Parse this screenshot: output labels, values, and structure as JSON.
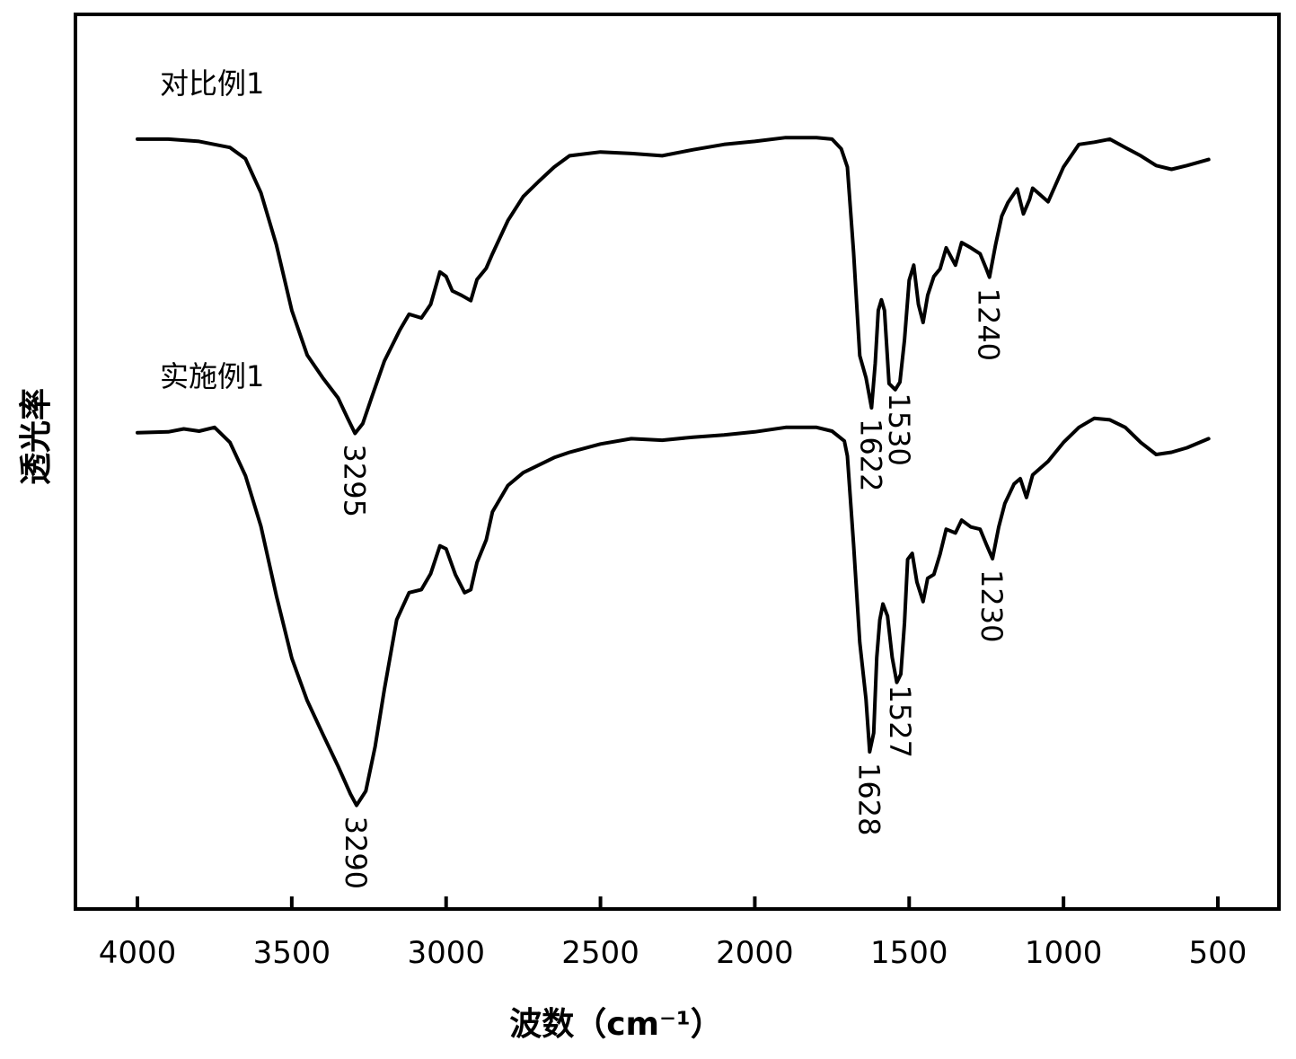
{
  "chart_data": {
    "type": "line",
    "xlabel": "波数（cm⁻¹）",
    "ylabel": "透光率",
    "xlim": [
      4200,
      300
    ],
    "x_ticks": [
      4000,
      3500,
      3000,
      2500,
      2000,
      1500,
      1000,
      500
    ],
    "x_tick_labels": [
      "4000",
      "3500",
      "3000",
      "2500",
      "2000",
      "1500",
      "1000",
      "500"
    ],
    "ylim": [
      0,
      100
    ],
    "grid": false,
    "series": [
      {
        "name": "对比例1",
        "points": [
          [
            4000,
            88.7
          ],
          [
            3900,
            88.7
          ],
          [
            3800,
            88.4
          ],
          [
            3700,
            87.6
          ],
          [
            3650,
            86.1
          ],
          [
            3600,
            81.6
          ],
          [
            3550,
            74.7
          ],
          [
            3500,
            66.0
          ],
          [
            3450,
            60.1
          ],
          [
            3400,
            57.1
          ],
          [
            3350,
            54.4
          ],
          [
            3320,
            51.8
          ],
          [
            3295,
            49.7
          ],
          [
            3270,
            51.0
          ],
          [
            3240,
            54.6
          ],
          [
            3200,
            59.3
          ],
          [
            3150,
            63.4
          ],
          [
            3120,
            65.5
          ],
          [
            3080,
            65.0
          ],
          [
            3050,
            66.8
          ],
          [
            3020,
            71.1
          ],
          [
            3000,
            70.5
          ],
          [
            2980,
            68.6
          ],
          [
            2950,
            68.0
          ],
          [
            2920,
            67.3
          ],
          [
            2900,
            70.1
          ],
          [
            2870,
            71.6
          ],
          [
            2850,
            73.5
          ],
          [
            2800,
            77.9
          ],
          [
            2750,
            81.1
          ],
          [
            2700,
            83.1
          ],
          [
            2650,
            85.0
          ],
          [
            2600,
            86.5
          ],
          [
            2500,
            87.0
          ],
          [
            2400,
            86.8
          ],
          [
            2300,
            86.5
          ],
          [
            2200,
            87.3
          ],
          [
            2100,
            88.0
          ],
          [
            2000,
            88.4
          ],
          [
            1900,
            88.9
          ],
          [
            1800,
            88.9
          ],
          [
            1750,
            88.7
          ],
          [
            1720,
            87.4
          ],
          [
            1700,
            85.0
          ],
          [
            1680,
            73.7
          ],
          [
            1660,
            60.0
          ],
          [
            1640,
            57.1
          ],
          [
            1622,
            53.1
          ],
          [
            1610,
            59.0
          ],
          [
            1600,
            66.0
          ],
          [
            1590,
            67.4
          ],
          [
            1580,
            66.0
          ],
          [
            1565,
            56.3
          ],
          [
            1545,
            55.5
          ],
          [
            1530,
            56.5
          ],
          [
            1515,
            62.1
          ],
          [
            1500,
            70.0
          ],
          [
            1485,
            72.0
          ],
          [
            1470,
            66.8
          ],
          [
            1455,
            64.4
          ],
          [
            1440,
            68.0
          ],
          [
            1420,
            70.5
          ],
          [
            1400,
            71.5
          ],
          [
            1380,
            74.3
          ],
          [
            1350,
            72.0
          ],
          [
            1330,
            75.0
          ],
          [
            1300,
            74.3
          ],
          [
            1270,
            73.5
          ],
          [
            1250,
            71.5
          ],
          [
            1240,
            70.4
          ],
          [
            1220,
            74.7
          ],
          [
            1200,
            78.5
          ],
          [
            1180,
            80.3
          ],
          [
            1150,
            82.1
          ],
          [
            1130,
            78.8
          ],
          [
            1110,
            80.7
          ],
          [
            1100,
            82.2
          ],
          [
            1050,
            80.4
          ],
          [
            1000,
            85.0
          ],
          [
            950,
            88.0
          ],
          [
            900,
            88.3
          ],
          [
            850,
            88.7
          ],
          [
            800,
            87.6
          ],
          [
            750,
            86.5
          ],
          [
            700,
            85.2
          ],
          [
            650,
            84.7
          ],
          [
            600,
            85.2
          ],
          [
            530,
            86.0
          ]
        ]
      },
      {
        "name": "实施例1",
        "points": [
          [
            4000,
            49.8
          ],
          [
            3900,
            49.9
          ],
          [
            3850,
            50.3
          ],
          [
            3800,
            50.0
          ],
          [
            3750,
            50.5
          ],
          [
            3700,
            48.5
          ],
          [
            3650,
            44.1
          ],
          [
            3600,
            37.4
          ],
          [
            3550,
            28.2
          ],
          [
            3500,
            19.9
          ],
          [
            3450,
            14.3
          ],
          [
            3400,
            9.9
          ],
          [
            3350,
            5.6
          ],
          [
            3310,
            1.9
          ],
          [
            3290,
            0.4
          ],
          [
            3260,
            2.3
          ],
          [
            3230,
            8.2
          ],
          [
            3200,
            15.8
          ],
          [
            3160,
            25.0
          ],
          [
            3120,
            28.6
          ],
          [
            3080,
            29.0
          ],
          [
            3050,
            31.1
          ],
          [
            3020,
            34.8
          ],
          [
            3000,
            34.4
          ],
          [
            2970,
            31.0
          ],
          [
            2940,
            28.6
          ],
          [
            2920,
            29.0
          ],
          [
            2900,
            32.6
          ],
          [
            2870,
            35.6
          ],
          [
            2850,
            39.3
          ],
          [
            2800,
            42.8
          ],
          [
            2750,
            44.5
          ],
          [
            2700,
            45.5
          ],
          [
            2650,
            46.5
          ],
          [
            2600,
            47.2
          ],
          [
            2500,
            48.3
          ],
          [
            2400,
            49.0
          ],
          [
            2300,
            48.8
          ],
          [
            2200,
            49.2
          ],
          [
            2100,
            49.5
          ],
          [
            2000,
            49.9
          ],
          [
            1900,
            50.5
          ],
          [
            1800,
            50.5
          ],
          [
            1750,
            50.0
          ],
          [
            1710,
            48.7
          ],
          [
            1700,
            46.7
          ],
          [
            1680,
            35.0
          ],
          [
            1660,
            22.0
          ],
          [
            1640,
            14.5
          ],
          [
            1628,
            7.5
          ],
          [
            1615,
            10.0
          ],
          [
            1605,
            20.0
          ],
          [
            1595,
            25.0
          ],
          [
            1585,
            27.1
          ],
          [
            1570,
            25.5
          ],
          [
            1555,
            20.0
          ],
          [
            1540,
            16.7
          ],
          [
            1527,
            17.8
          ],
          [
            1515,
            24.6
          ],
          [
            1505,
            33.0
          ],
          [
            1490,
            33.8
          ],
          [
            1475,
            30.0
          ],
          [
            1455,
            27.4
          ],
          [
            1440,
            30.5
          ],
          [
            1420,
            31.0
          ],
          [
            1400,
            33.7
          ],
          [
            1380,
            37.0
          ],
          [
            1350,
            36.5
          ],
          [
            1330,
            38.2
          ],
          [
            1300,
            37.3
          ],
          [
            1270,
            37.0
          ],
          [
            1250,
            35.0
          ],
          [
            1230,
            33.1
          ],
          [
            1210,
            37.3
          ],
          [
            1190,
            40.4
          ],
          [
            1160,
            43.0
          ],
          [
            1140,
            43.7
          ],
          [
            1120,
            41.2
          ],
          [
            1100,
            44.2
          ],
          [
            1050,
            46.0
          ],
          [
            1000,
            48.5
          ],
          [
            950,
            50.5
          ],
          [
            900,
            51.7
          ],
          [
            850,
            51.5
          ],
          [
            800,
            50.5
          ],
          [
            750,
            48.5
          ],
          [
            700,
            46.9
          ],
          [
            650,
            47.2
          ],
          [
            600,
            47.8
          ],
          [
            530,
            49.0
          ]
        ]
      }
    ],
    "series_labels": [
      "对比例1",
      "实施例1"
    ],
    "annotations": [
      {
        "text": "3295",
        "series": 0,
        "x": 3295
      },
      {
        "text": "1622",
        "series": 0,
        "x": 1622
      },
      {
        "text": "1530",
        "series": 0,
        "x": 1530
      },
      {
        "text": "1240",
        "series": 0,
        "x": 1240
      },
      {
        "text": "3290",
        "series": 1,
        "x": 3290
      },
      {
        "text": "1628",
        "series": 1,
        "x": 1628
      },
      {
        "text": "1527",
        "series": 1,
        "x": 1527
      },
      {
        "text": "1230",
        "series": 1,
        "x": 1230
      }
    ]
  }
}
